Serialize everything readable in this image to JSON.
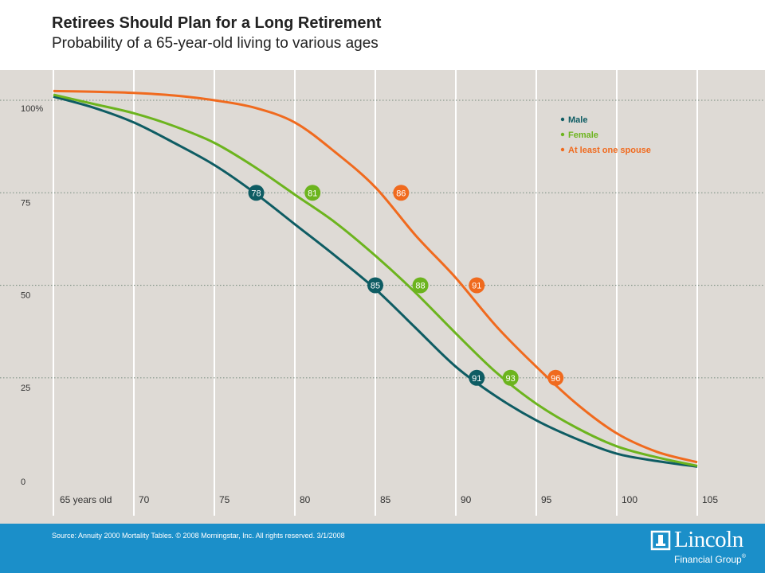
{
  "header": {
    "title": "Retirees Should Plan for a Long Retirement",
    "subtitle": "Probability of a 65-year-old living to various ages"
  },
  "footer": {
    "source": "Source: Annuity 2000 Mortality Tables. © 2008 Morningstar, Inc. All rights reserved. 3/1/2008",
    "logo_name": "Lincoln",
    "logo_sub": "Financial Group",
    "logo_reg": "®"
  },
  "chart_data": {
    "type": "line",
    "title": "Retirees Should Plan for a Long Retirement",
    "subtitle": "Probability of a 65-year-old living to various ages",
    "xlim": [
      65,
      105
    ],
    "ylim": [
      0,
      100
    ],
    "x_ticks": [
      {
        "value": 65,
        "label": "65 years old"
      },
      {
        "value": 70,
        "label": "70"
      },
      {
        "value": 75,
        "label": "75"
      },
      {
        "value": 80,
        "label": "80"
      },
      {
        "value": 85,
        "label": "85"
      },
      {
        "value": 90,
        "label": "90"
      },
      {
        "value": 95,
        "label": "95"
      },
      {
        "value": 100,
        "label": "100"
      },
      {
        "value": 105,
        "label": "105"
      }
    ],
    "y_ticks": [
      {
        "value": 0,
        "label": "0"
      },
      {
        "value": 25,
        "label": "25"
      },
      {
        "value": 50,
        "label": "50"
      },
      {
        "value": 75,
        "label": "75"
      },
      {
        "value": 100,
        "label": "100%"
      }
    ],
    "grid": {
      "vertical": true,
      "horizontal_dotted": true
    },
    "legend_position": "top-right",
    "series": [
      {
        "name": "Male",
        "color": "#0e5c63",
        "x": [
          65,
          67.5,
          70,
          72.5,
          75,
          77.5,
          80,
          82.5,
          85,
          87.5,
          90,
          92.5,
          95,
          97.5,
          100,
          102.5,
          105
        ],
        "y": [
          101,
          98,
          94,
          88.5,
          82.5,
          75,
          66.5,
          58,
          49,
          38.5,
          28,
          20,
          13.5,
          8.5,
          4.5,
          2.5,
          1
        ],
        "markers": [
          {
            "label": "78",
            "x": 77.6,
            "y": 75
          },
          {
            "label": "85",
            "x": 85,
            "y": 50
          },
          {
            "label": "91",
            "x": 91.3,
            "y": 25
          }
        ]
      },
      {
        "name": "Female",
        "color": "#6cb41e",
        "x": [
          65,
          67.5,
          70,
          72.5,
          75,
          77.5,
          80,
          82.5,
          85,
          87.5,
          90,
          92.5,
          95,
          97.5,
          100,
          102.5,
          105
        ],
        "y": [
          101.5,
          99,
          96.5,
          93,
          88.5,
          82,
          74.5,
          67,
          58,
          48,
          37,
          26.5,
          18,
          11.5,
          6.5,
          3.5,
          1.2
        ],
        "markers": [
          {
            "label": "81",
            "x": 81.1,
            "y": 75
          },
          {
            "label": "88",
            "x": 87.8,
            "y": 50
          },
          {
            "label": "93",
            "x": 93.4,
            "y": 25
          }
        ]
      },
      {
        "name": "At least one spouse",
        "color": "#f06a1e",
        "x": [
          65,
          67.5,
          70,
          72.5,
          75,
          77.5,
          80,
          82.5,
          85,
          87.5,
          90,
          92.5,
          95,
          97.5,
          100,
          102.5,
          105
        ],
        "y": [
          102.5,
          102.3,
          102,
          101.3,
          100,
          98,
          94,
          86,
          76.5,
          63.5,
          52,
          39,
          28,
          18,
          10,
          5,
          2.2
        ],
        "markers": [
          {
            "label": "86",
            "x": 86.6,
            "y": 75
          },
          {
            "label": "91",
            "x": 91.3,
            "y": 50
          },
          {
            "label": "96",
            "x": 96.2,
            "y": 25
          }
        ]
      }
    ]
  }
}
